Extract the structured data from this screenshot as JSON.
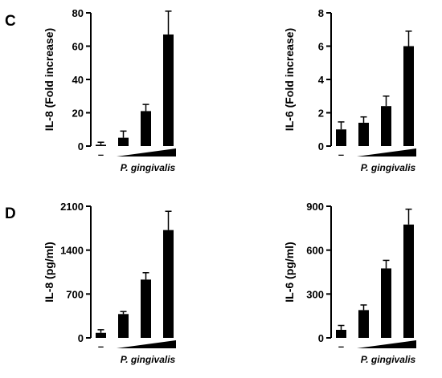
{
  "panels": [
    {
      "letter": "C"
    },
    {
      "letter": "D"
    }
  ],
  "chart_data": [
    {
      "type": "bar",
      "panel": "C",
      "position": "left",
      "categories": [
        "–",
        "",
        "",
        ""
      ],
      "values": [
        0.8,
        5,
        21,
        67
      ],
      "errors": [
        1.5,
        4,
        4,
        14
      ],
      "ylabel": "IL-8 (Fold increase)",
      "xlabel": "P. gingivalis",
      "ylim": [
        0,
        80
      ],
      "yticks": [
        0,
        20,
        40,
        60,
        80
      ],
      "color": "#000000"
    },
    {
      "type": "bar",
      "panel": "C",
      "position": "right",
      "categories": [
        "–",
        "",
        "",
        ""
      ],
      "values": [
        1.0,
        1.4,
        2.4,
        6.0
      ],
      "errors": [
        0.45,
        0.35,
        0.6,
        0.9
      ],
      "ylabel": "IL-6 (Fold increase)",
      "xlabel": "P. gingivalis",
      "ylim": [
        0,
        8
      ],
      "yticks": [
        0,
        2,
        4,
        6,
        8
      ],
      "color": "#000000"
    },
    {
      "type": "bar",
      "panel": "D",
      "position": "left",
      "categories": [
        "–",
        "",
        "",
        ""
      ],
      "values": [
        80,
        380,
        930,
        1720
      ],
      "errors": [
        50,
        40,
        110,
        300
      ],
      "ylabel": "IL-8 (pg/ml)",
      "xlabel": "P. gingivalis",
      "ylim": [
        0,
        2100
      ],
      "yticks": [
        0,
        700,
        1400,
        2100
      ],
      "color": "#000000"
    },
    {
      "type": "bar",
      "panel": "D",
      "position": "right",
      "categories": [
        "–",
        "",
        "",
        ""
      ],
      "values": [
        55,
        190,
        475,
        775
      ],
      "errors": [
        30,
        35,
        55,
        105
      ],
      "ylabel": "IL-6 (pg/ml)",
      "xlabel": "P. gingivalis",
      "ylim": [
        0,
        900
      ],
      "yticks": [
        0,
        300,
        600,
        900
      ],
      "color": "#000000"
    }
  ]
}
